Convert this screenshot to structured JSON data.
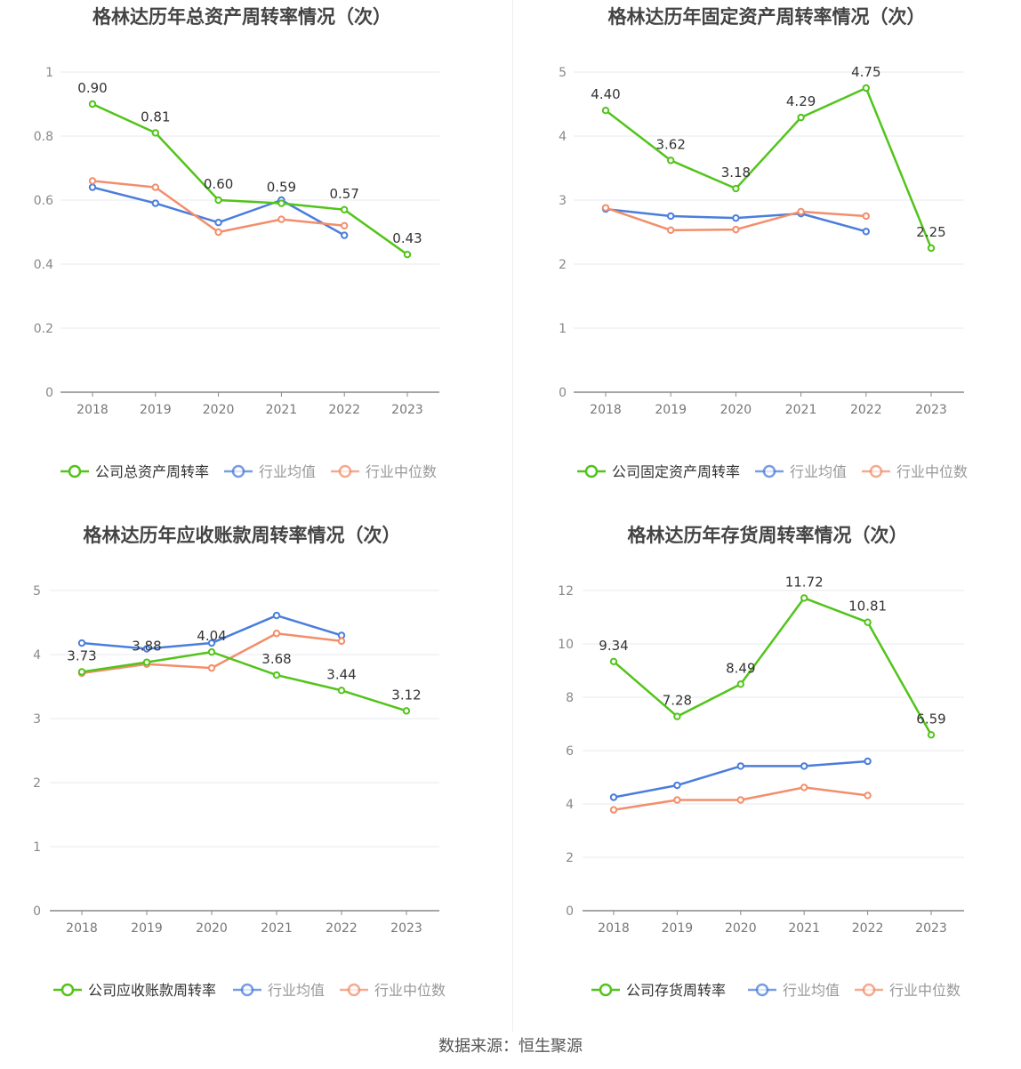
{
  "footer": {
    "source": "数据来源：恒生聚源"
  },
  "colors": {
    "company": "#52c41a",
    "avg": "#4a7ddc",
    "median": "#f28e6b"
  },
  "chart_data": [
    {
      "type": "line",
      "title": "格林达历年总资产周转率情况（次）",
      "categories": [
        "2018",
        "2019",
        "2020",
        "2021",
        "2022",
        "2023"
      ],
      "ylim": [
        0,
        1
      ],
      "yticks": [
        0,
        0.2,
        0.4,
        0.6,
        0.8,
        1
      ],
      "ytick_labels": [
        "0",
        "0.2",
        "0.4",
        "0.6",
        "0.8",
        "1"
      ],
      "grid": true,
      "legend": "bottom",
      "series": [
        {
          "name": "公司总资产周转率",
          "role": "company",
          "values": [
            0.9,
            0.81,
            0.6,
            0.59,
            0.57,
            0.43
          ],
          "labels": [
            "0.90",
            "0.81",
            "0.60",
            "0.59",
            "0.57",
            "0.43"
          ]
        },
        {
          "name": "行业均值",
          "role": "avg",
          "values": [
            0.64,
            0.59,
            0.53,
            0.6,
            0.49,
            null
          ]
        },
        {
          "name": "行业中位数",
          "role": "median",
          "values": [
            0.66,
            0.64,
            0.5,
            0.54,
            0.52,
            null
          ]
        }
      ]
    },
    {
      "type": "line",
      "title": "格林达历年固定资产周转率情况（次）",
      "categories": [
        "2018",
        "2019",
        "2020",
        "2021",
        "2022",
        "2023"
      ],
      "ylim": [
        0,
        5
      ],
      "yticks": [
        0,
        1,
        2,
        3,
        4,
        5
      ],
      "ytick_labels": [
        "0",
        "1",
        "2",
        "3",
        "4",
        "5"
      ],
      "grid": true,
      "legend": "bottom",
      "series": [
        {
          "name": "公司固定资产周转率",
          "role": "company",
          "values": [
            4.4,
            3.62,
            3.18,
            4.29,
            4.75,
            2.25
          ],
          "labels": [
            "4.40",
            "3.62",
            "3.18",
            "4.29",
            "4.75",
            "2.25"
          ]
        },
        {
          "name": "行业均值",
          "role": "avg",
          "values": [
            2.86,
            2.75,
            2.72,
            2.79,
            2.51,
            null
          ]
        },
        {
          "name": "行业中位数",
          "role": "median",
          "values": [
            2.88,
            2.53,
            2.54,
            2.82,
            2.75,
            null
          ]
        }
      ]
    },
    {
      "type": "line",
      "title": "格林达历年应收账款周转率情况（次）",
      "categories": [
        "2018",
        "2019",
        "2020",
        "2021",
        "2022",
        "2023"
      ],
      "ylim": [
        0,
        5
      ],
      "yticks": [
        0,
        1,
        2,
        3,
        4,
        5
      ],
      "ytick_labels": [
        "0",
        "1",
        "2",
        "3",
        "4",
        "5"
      ],
      "grid": true,
      "legend": "bottom",
      "series": [
        {
          "name": "公司应收账款周转率",
          "role": "company",
          "values": [
            3.73,
            3.88,
            4.04,
            3.68,
            3.44,
            3.12
          ],
          "labels": [
            "3.73",
            "3.88",
            "4.04",
            "3.68",
            "3.44",
            "3.12"
          ]
        },
        {
          "name": "行业均值",
          "role": "avg",
          "values": [
            4.18,
            4.09,
            4.18,
            4.61,
            4.3,
            null
          ]
        },
        {
          "name": "行业中位数",
          "role": "median",
          "values": [
            3.71,
            3.85,
            3.79,
            4.33,
            4.21,
            null
          ]
        }
      ]
    },
    {
      "type": "line",
      "title": "格林达历年存货周转率情况（次）",
      "categories": [
        "2018",
        "2019",
        "2020",
        "2021",
        "2022",
        "2023"
      ],
      "ylim": [
        0,
        12
      ],
      "yticks": [
        0,
        2,
        4,
        6,
        8,
        10,
        12
      ],
      "ytick_labels": [
        "0",
        "2",
        "4",
        "6",
        "8",
        "10",
        "12"
      ],
      "grid": true,
      "legend": "bottom",
      "series": [
        {
          "name": "公司存货周转率",
          "role": "company",
          "values": [
            9.34,
            7.28,
            8.49,
            11.72,
            10.81,
            6.59
          ],
          "labels": [
            "9.34",
            "7.28",
            "8.49",
            "11.72",
            "10.81",
            "6.59"
          ]
        },
        {
          "name": "行业均值",
          "role": "avg",
          "values": [
            4.25,
            4.7,
            5.42,
            5.42,
            5.6,
            null
          ]
        },
        {
          "name": "行业中位数",
          "role": "median",
          "values": [
            3.78,
            4.15,
            4.15,
            4.62,
            4.32,
            null
          ]
        }
      ]
    }
  ]
}
